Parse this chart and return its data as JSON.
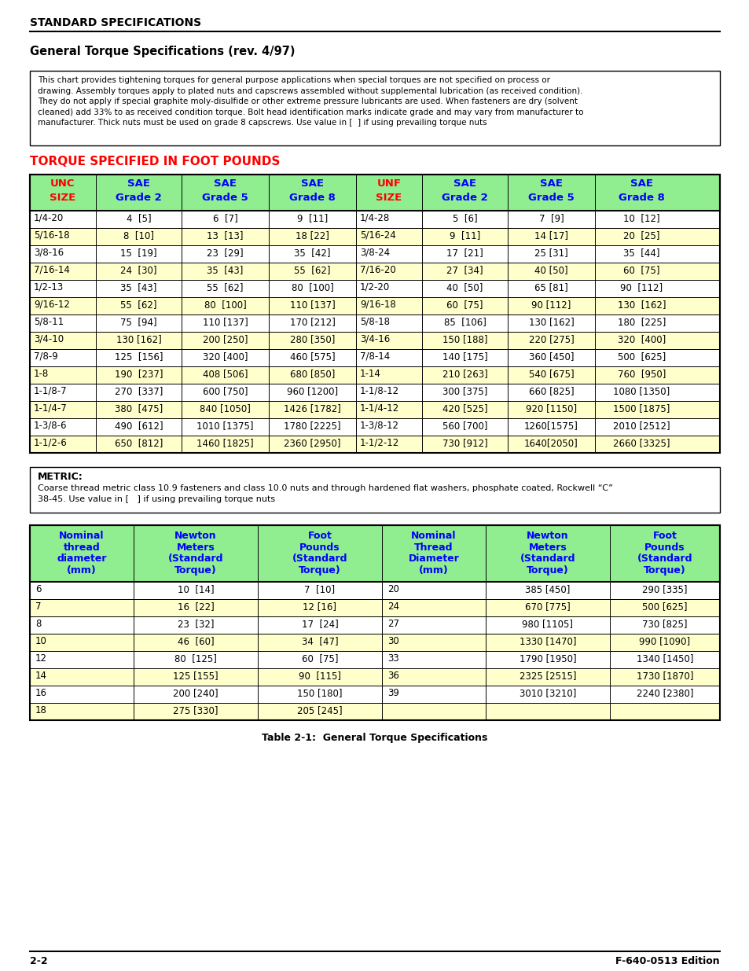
{
  "page_bg": "#ffffff",
  "header_title": "STANDARD SPECIFICATIONS",
  "section_title": "General Torque Specifications (rev. 4/97)",
  "intro_text": "This chart provides tightening torques for general purpose applications when special torques are not specified on process or\ndrawing. Assembly torques apply to plated nuts and capscrews assembled without supplemental lubrication (as received condition).\nThey do not apply if special graphite moly-disulfide or other extreme pressure lubricants are used. When fasteners are dry (solvent\ncleaned) add 33% to as received condition torque. Bolt head identification marks indicate grade and may vary from manufacturer to\nmanufacturer. Thick nuts must be used on grade 8 capscrews. Use value in [  ] if using prevailing torque nuts",
  "torque_title": "TORQUE SPECIFIED IN FOOT POUNDS",
  "table1_header": [
    "UNC\nSIZE",
    "SAE\nGrade 2",
    "SAE\nGrade 5",
    "SAE\nGrade 8",
    "UNF\nSIZE",
    "SAE\nGrade 2",
    "SAE\nGrade 5",
    "SAE\nGrade 8"
  ],
  "table1_header_colors": [
    "red",
    "blue",
    "blue",
    "blue",
    "red",
    "blue",
    "blue",
    "blue"
  ],
  "table1_data": [
    [
      "1/4-20",
      "4  [5]",
      "6  [7]",
      "9  [11]",
      "1/4-28",
      "5  [6]",
      "7  [9]",
      "10  [12]"
    ],
    [
      "5/16-18",
      "8  [10]",
      "13  [13]",
      "18 [22]",
      "5/16-24",
      "9  [11]",
      "14 [17]",
      "20  [25]"
    ],
    [
      "3/8-16",
      "15  [19]",
      "23  [29]",
      "35  [42]",
      "3/8-24",
      "17  [21]",
      "25 [31]",
      "35  [44]"
    ],
    [
      "7/16-14",
      "24  [30]",
      "35  [43]",
      "55  [62]",
      "7/16-20",
      "27  [34]",
      "40 [50]",
      "60  [75]"
    ],
    [
      "1/2-13",
      "35  [43]",
      "55  [62]",
      "80  [100]",
      "1/2-20",
      "40  [50]",
      "65 [81]",
      "90  [112]"
    ],
    [
      "9/16-12",
      "55  [62]",
      "80  [100]",
      "110 [137]",
      "9/16-18",
      "60  [75]",
      "90 [112]",
      "130  [162]"
    ],
    [
      "5/8-11",
      "75  [94]",
      "110 [137]",
      "170 [212]",
      "5/8-18",
      "85  [106]",
      "130 [162]",
      "180  [225]"
    ],
    [
      "3/4-10",
      "130 [162]",
      "200 [250]",
      "280 [350]",
      "3/4-16",
      "150 [188]",
      "220 [275]",
      "320  [400]"
    ],
    [
      "7/8-9",
      "125  [156]",
      "320 [400]",
      "460 [575]",
      "7/8-14",
      "140 [175]",
      "360 [450]",
      "500  [625]"
    ],
    [
      "1-8",
      "190  [237]",
      "408 [506]",
      "680 [850]",
      "1-14",
      "210 [263]",
      "540 [675]",
      "760  [950]"
    ],
    [
      "1-1/8-7",
      "270  [337]",
      "600 [750]",
      "960 [1200]",
      "1-1/8-12",
      "300 [375]",
      "660 [825]",
      "1080 [1350]"
    ],
    [
      "1-1/4-7",
      "380  [475]",
      "840 [1050]",
      "1426 [1782]",
      "1-1/4-12",
      "420 [525]",
      "920 [1150]",
      "1500 [1875]"
    ],
    [
      "1-3/8-6",
      "490  [612]",
      "1010 [1375]",
      "1780 [2225]",
      "1-3/8-12",
      "560 [700]",
      "1260[1575]",
      "2010 [2512]"
    ],
    [
      "1-1/2-6",
      "650  [812]",
      "1460 [1825]",
      "2360 [2950]",
      "1-1/2-12",
      "730 [912]",
      "1640[2050]",
      "2660 [3325]"
    ]
  ],
  "table1_highlight_rows": [
    1,
    3,
    5,
    7,
    9,
    11,
    13
  ],
  "metric_box_title": "METRIC:",
  "metric_text": "Coarse thread metric class 10.9 fasteners and class 10.0 nuts and through hardened flat washers, phosphate coated, Rockwell “C”\n38-45. Use value in [   ] if using prevailing torque nuts",
  "table2_header": [
    "Nominal\nthread\ndiameter\n(mm)",
    "Newton\nMeters\n(Standard\nTorque)",
    "Foot\nPounds\n(Standard\nTorque)",
    "Nominal\nThread\nDiameter\n(mm)",
    "Newton\nMeters\n(Standard\nTorque)",
    "Foot\nPounds\n(Standard\nTorque)"
  ],
  "table2_data": [
    [
      "6",
      "10  [14]",
      "7  [10]",
      "20",
      "385 [450]",
      "290 [335]"
    ],
    [
      "7",
      "16  [22]",
      "12 [16]",
      "24",
      "670 [775]",
      "500 [625]"
    ],
    [
      "8",
      "23  [32]",
      "17  [24]",
      "27",
      "980 [1105]",
      "730 [825]"
    ],
    [
      "10",
      "46  [60]",
      "34  [47]",
      "30",
      "1330 [1470]",
      "990 [1090]"
    ],
    [
      "12",
      "80  [125]",
      "60  [75]",
      "33",
      "1790 [1950]",
      "1340 [1450]"
    ],
    [
      "14",
      "125 [155]",
      "90  [115]",
      "36",
      "2325 [2515]",
      "1730 [1870]"
    ],
    [
      "16",
      "200 [240]",
      "150 [180]",
      "39",
      "3010 [3210]",
      "2240 [2380]"
    ],
    [
      "18",
      "275 [330]",
      "205 [245]",
      "",
      "",
      ""
    ]
  ],
  "table2_highlight_rows": [
    1,
    3,
    5,
    7
  ],
  "table_caption": "Table 2-1:  General Torque Specifications",
  "footer_left": "2-2",
  "footer_right": "F-640-0513 Edition",
  "header_bg": "#90ee90",
  "row_highlight": "#ffffcc",
  "row_normal": "#ffffff",
  "border_color": "#000000"
}
